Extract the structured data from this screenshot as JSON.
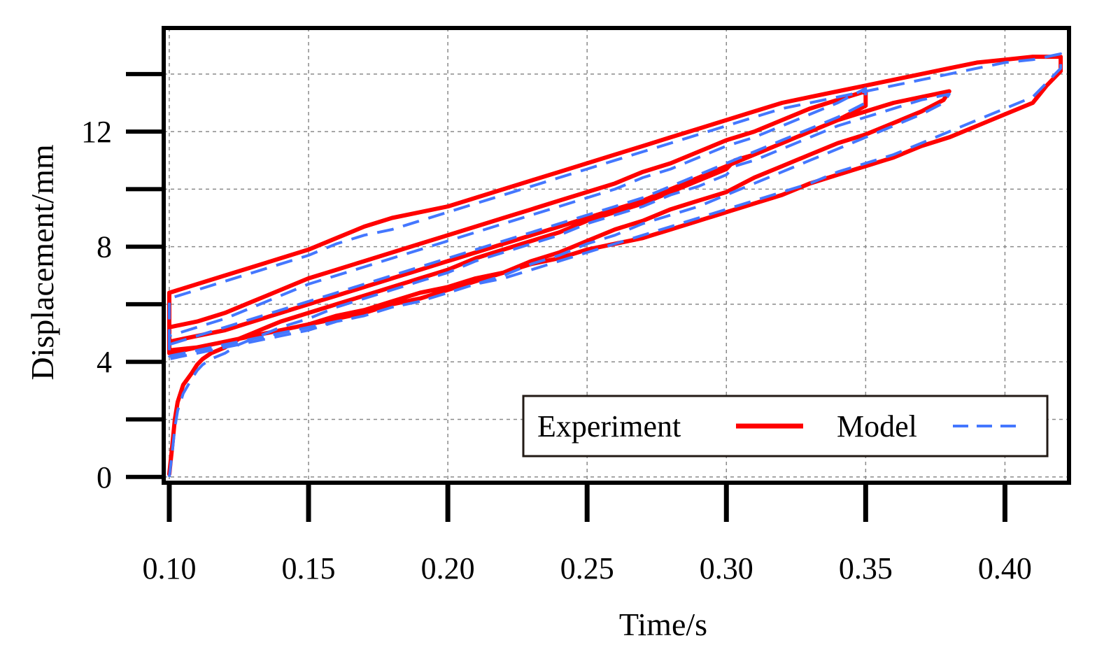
{
  "chart_data": {
    "type": "line",
    "title": "",
    "xlabel": "Time/s",
    "ylabel": "Displacement/mm",
    "xlim": [
      0.098,
      0.423
    ],
    "ylim": [
      -0.2,
      15.6
    ],
    "x_ticks": [
      0.1,
      0.15,
      0.2,
      0.25,
      0.3,
      0.35,
      0.4
    ],
    "x_tick_labels": [
      "0.10",
      "0.15",
      "0.20",
      "0.25",
      "0.30",
      "0.35",
      "0.40"
    ],
    "y_ticks": [
      0,
      2,
      4,
      6,
      8,
      10,
      12,
      14
    ],
    "y_tick_labels": [
      "0",
      "",
      "4",
      "",
      "8",
      "",
      "12",
      ""
    ],
    "grid": true,
    "legend": {
      "position": "bottom-right",
      "layout": "horizontal"
    },
    "series": [
      {
        "name": "Experiment",
        "color": "#ff0000",
        "style": "solid",
        "x": [
          0.1,
          0.101,
          0.102,
          0.103,
          0.105,
          0.108,
          0.11,
          0.112,
          0.115,
          0.12,
          0.125,
          0.13,
          0.135,
          0.14,
          0.15,
          0.16,
          0.17,
          0.18,
          0.19,
          0.2,
          0.21,
          0.22,
          0.23,
          0.24,
          0.25,
          0.26,
          0.27,
          0.28,
          0.29,
          0.3,
          0.303,
          0.31,
          0.32,
          0.33,
          0.34,
          0.35,
          0.36,
          0.37,
          0.38,
          0.378,
          0.37,
          0.36,
          0.35,
          0.34,
          0.33,
          0.32,
          0.31,
          0.3,
          0.29,
          0.28,
          0.27,
          0.26,
          0.25,
          0.24,
          0.23,
          0.22,
          0.21,
          0.2,
          0.19,
          0.18,
          0.17,
          0.16,
          0.15,
          0.14,
          0.13,
          0.12,
          0.11,
          0.105,
          0.1,
          0.1,
          0.11,
          0.12,
          0.13,
          0.14,
          0.15,
          0.16,
          0.17,
          0.18,
          0.19,
          0.2,
          0.21,
          0.22,
          0.23,
          0.24,
          0.25,
          0.26,
          0.27,
          0.28,
          0.29,
          0.3,
          0.31,
          0.32,
          0.33,
          0.34,
          0.35,
          0.36,
          0.37,
          0.38,
          0.39,
          0.4,
          0.41,
          0.42,
          0.42,
          0.415,
          0.41,
          0.4,
          0.39,
          0.38,
          0.37,
          0.36,
          0.35,
          0.34,
          0.33,
          0.32,
          0.31,
          0.3,
          0.29,
          0.28,
          0.27,
          0.26,
          0.25,
          0.24,
          0.23,
          0.22,
          0.21,
          0.2,
          0.19,
          0.18,
          0.17,
          0.16,
          0.15,
          0.14,
          0.13,
          0.12,
          0.11,
          0.1,
          0.1,
          0.11,
          0.12,
          0.13,
          0.14,
          0.15,
          0.16,
          0.17,
          0.18,
          0.19,
          0.2,
          0.21,
          0.22,
          0.23,
          0.24,
          0.25,
          0.26,
          0.27,
          0.28,
          0.29,
          0.3,
          0.31,
          0.32,
          0.33,
          0.34,
          0.35,
          0.35,
          0.34,
          0.33,
          0.32,
          0.31,
          0.3,
          0.29,
          0.28,
          0.27,
          0.26,
          0.25,
          0.24,
          0.23,
          0.22,
          0.21,
          0.2,
          0.19,
          0.18,
          0.17,
          0.16,
          0.15,
          0.14,
          0.13,
          0.12,
          0.11,
          0.1
        ],
        "y": [
          0.1,
          1.0,
          2.0,
          2.6,
          3.2,
          3.6,
          3.9,
          4.1,
          4.3,
          4.5,
          4.8,
          5.0,
          5.2,
          5.4,
          5.7,
          6.0,
          6.3,
          6.6,
          6.9,
          7.2,
          7.6,
          7.9,
          8.2,
          8.5,
          8.9,
          9.2,
          9.5,
          9.9,
          10.3,
          10.7,
          11.0,
          11.2,
          11.6,
          12.0,
          12.4,
          12.7,
          13.0,
          13.2,
          13.4,
          13.1,
          12.7,
          12.3,
          11.9,
          11.6,
          11.2,
          10.8,
          10.4,
          9.9,
          9.6,
          9.3,
          8.9,
          8.6,
          8.2,
          7.8,
          7.5,
          7.1,
          6.8,
          6.5,
          6.2,
          6.0,
          5.7,
          5.5,
          5.3,
          5.1,
          4.9,
          4.7,
          4.5,
          4.4,
          4.3,
          6.4,
          6.7,
          7.0,
          7.3,
          7.6,
          7.9,
          8.3,
          8.7,
          9.0,
          9.2,
          9.4,
          9.7,
          10.0,
          10.3,
          10.6,
          10.9,
          11.2,
          11.5,
          11.8,
          12.1,
          12.4,
          12.7,
          13.0,
          13.2,
          13.4,
          13.6,
          13.8,
          14.0,
          14.2,
          14.4,
          14.5,
          14.6,
          14.6,
          14.1,
          13.6,
          13.0,
          12.6,
          12.2,
          11.8,
          11.5,
          11.1,
          10.8,
          10.5,
          10.2,
          9.8,
          9.5,
          9.2,
          8.9,
          8.6,
          8.3,
          8.1,
          7.9,
          7.6,
          7.4,
          7.1,
          6.9,
          6.6,
          6.4,
          6.1,
          5.8,
          5.6,
          5.3,
          5.1,
          4.9,
          4.7,
          4.5,
          4.4,
          5.2,
          5.4,
          5.7,
          6.1,
          6.5,
          6.9,
          7.2,
          7.5,
          7.8,
          8.1,
          8.4,
          8.7,
          9.0,
          9.3,
          9.6,
          9.9,
          10.2,
          10.6,
          10.9,
          11.3,
          11.7,
          12.0,
          12.4,
          12.8,
          13.1,
          13.4,
          12.9,
          12.4,
          12.0,
          11.6,
          11.2,
          10.8,
          10.4,
          10.0,
          9.6,
          9.3,
          9.0,
          8.7,
          8.4,
          8.1,
          7.8,
          7.5,
          7.2,
          6.9,
          6.6,
          6.3,
          6.0,
          5.7,
          5.4,
          5.1,
          4.9,
          4.7
        ]
      },
      {
        "name": "Model",
        "color": "#4477ff",
        "style": "dashed",
        "x": [
          0.1,
          0.101,
          0.102,
          0.103,
          0.105,
          0.108,
          0.11,
          0.112,
          0.115,
          0.12,
          0.125,
          0.13,
          0.135,
          0.14,
          0.15,
          0.16,
          0.17,
          0.18,
          0.19,
          0.2,
          0.21,
          0.22,
          0.23,
          0.24,
          0.25,
          0.26,
          0.27,
          0.28,
          0.29,
          0.3,
          0.303,
          0.31,
          0.32,
          0.33,
          0.34,
          0.35,
          0.36,
          0.37,
          0.38,
          0.378,
          0.37,
          0.36,
          0.35,
          0.34,
          0.33,
          0.32,
          0.31,
          0.3,
          0.29,
          0.28,
          0.27,
          0.26,
          0.25,
          0.24,
          0.23,
          0.22,
          0.21,
          0.2,
          0.19,
          0.18,
          0.17,
          0.16,
          0.15,
          0.14,
          0.13,
          0.12,
          0.11,
          0.105,
          0.1,
          0.1,
          0.11,
          0.12,
          0.13,
          0.14,
          0.15,
          0.16,
          0.17,
          0.18,
          0.19,
          0.2,
          0.21,
          0.22,
          0.23,
          0.24,
          0.25,
          0.26,
          0.27,
          0.28,
          0.29,
          0.3,
          0.31,
          0.32,
          0.33,
          0.34,
          0.35,
          0.36,
          0.37,
          0.38,
          0.39,
          0.4,
          0.41,
          0.42,
          0.42,
          0.415,
          0.41,
          0.4,
          0.39,
          0.38,
          0.37,
          0.36,
          0.35,
          0.34,
          0.33,
          0.32,
          0.31,
          0.3,
          0.29,
          0.28,
          0.27,
          0.26,
          0.25,
          0.24,
          0.23,
          0.22,
          0.21,
          0.2,
          0.19,
          0.18,
          0.17,
          0.16,
          0.15,
          0.14,
          0.13,
          0.12,
          0.11,
          0.1,
          0.1,
          0.11,
          0.12,
          0.13,
          0.14,
          0.15,
          0.16,
          0.17,
          0.18,
          0.19,
          0.2,
          0.21,
          0.22,
          0.23,
          0.24,
          0.25,
          0.26,
          0.27,
          0.28,
          0.29,
          0.3,
          0.31,
          0.32,
          0.33,
          0.34,
          0.35,
          0.35,
          0.34,
          0.33,
          0.32,
          0.31,
          0.3,
          0.29,
          0.28,
          0.27,
          0.26,
          0.25,
          0.24,
          0.23,
          0.22,
          0.21,
          0.2,
          0.19,
          0.18,
          0.17,
          0.16,
          0.15,
          0.14,
          0.13,
          0.12,
          0.11,
          0.1
        ],
        "y": [
          0.0,
          0.8,
          1.7,
          2.3,
          2.9,
          3.4,
          3.7,
          3.9,
          4.1,
          4.3,
          4.6,
          4.8,
          5.0,
          5.2,
          5.5,
          5.9,
          6.2,
          6.5,
          6.8,
          7.1,
          7.5,
          7.8,
          8.1,
          8.4,
          8.8,
          9.1,
          9.4,
          9.8,
          10.1,
          10.5,
          10.8,
          11.0,
          11.4,
          11.8,
          12.2,
          12.5,
          12.8,
          13.1,
          13.3,
          13.0,
          12.6,
          12.2,
          11.8,
          11.4,
          11.0,
          10.6,
          10.2,
          9.8,
          9.4,
          9.1,
          8.8,
          8.4,
          8.1,
          7.7,
          7.4,
          7.0,
          6.7,
          6.4,
          6.1,
          5.9,
          5.6,
          5.4,
          5.2,
          5.0,
          4.8,
          4.6,
          4.4,
          4.3,
          4.2,
          6.2,
          6.5,
          6.8,
          7.1,
          7.4,
          7.7,
          8.1,
          8.4,
          8.6,
          8.9,
          9.2,
          9.5,
          9.8,
          10.1,
          10.4,
          10.7,
          11.0,
          11.3,
          11.6,
          11.9,
          12.2,
          12.5,
          12.8,
          13.0,
          13.2,
          13.4,
          13.6,
          13.8,
          14.0,
          14.2,
          14.4,
          14.5,
          14.7,
          14.2,
          13.7,
          13.2,
          12.8,
          12.4,
          12.0,
          11.6,
          11.2,
          10.9,
          10.6,
          10.2,
          9.9,
          9.6,
          9.3,
          9.0,
          8.7,
          8.4,
          8.1,
          7.8,
          7.5,
          7.2,
          6.9,
          6.7,
          6.4,
          6.1,
          5.9,
          5.6,
          5.4,
          5.1,
          4.9,
          4.7,
          4.5,
          4.3,
          4.1,
          4.9,
          5.2,
          5.5,
          5.9,
          6.3,
          6.7,
          7.0,
          7.3,
          7.6,
          7.9,
          8.2,
          8.5,
          8.8,
          9.1,
          9.4,
          9.7,
          10.0,
          10.4,
          10.7,
          11.1,
          11.5,
          11.8,
          12.2,
          12.6,
          13.0,
          13.5,
          13.0,
          12.5,
          12.1,
          11.7,
          11.3,
          10.9,
          10.5,
          10.1,
          9.7,
          9.4,
          9.1,
          8.8,
          8.5,
          8.2,
          7.9,
          7.6,
          7.3,
          7.0,
          6.7,
          6.4,
          6.1,
          5.8,
          5.5,
          5.2,
          4.9,
          4.6
        ]
      }
    ]
  }
}
